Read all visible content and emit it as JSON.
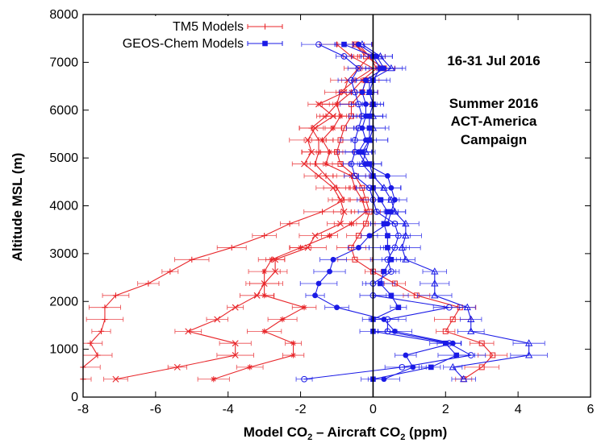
{
  "chart_data": {
    "type": "line",
    "title": "",
    "xlabel": "Model CO₂ – Aircraft CO₂ (ppm)",
    "xlabel_parts": {
      "a": "Model CO",
      "a_sub": "2",
      "b": " – Aircraft CO",
      "b_sub": "2",
      "c": " (ppm)"
    },
    "ylabel": "Altitude MSL (m)",
    "xlim": [
      -8,
      6
    ],
    "ylim": [
      0,
      8000
    ],
    "x_ticks": [
      "-8",
      "-6",
      "-4",
      "-2",
      "0",
      "2",
      "4",
      "6"
    ],
    "y_ticks": [
      "0",
      "1000",
      "2000",
      "3000",
      "4000",
      "5000",
      "6000",
      "7000",
      "8000"
    ],
    "legend_position": "top-left",
    "legend": [
      {
        "label": "TM5 Models",
        "color": "#e8262a",
        "marker": "plus"
      },
      {
        "label": "GEOS-Chem Models",
        "color": "#1a1ae6",
        "marker": "filled-square"
      }
    ],
    "annotations": {
      "date_range": "16-31 Jul 2016",
      "campaign_line1": "Summer 2016",
      "campaign_line2": "ACT-America",
      "campaign_line3": "Campaign"
    },
    "reference_line_x": 0,
    "altitudes": [
      375,
      625,
      875,
      1125,
      1375,
      1625,
      1875,
      2125,
      2375,
      2625,
      2875,
      3125,
      3375,
      3625,
      3875,
      4125,
      4375,
      4625,
      4875,
      5125,
      5375,
      5625,
      5875,
      6125,
      6375,
      6625,
      6875,
      7125,
      7375
    ],
    "series": [
      {
        "group": "TM5 Models",
        "color": "#e8262a",
        "marker": "plus",
        "values": [
          -8.4,
          -8.2,
          -7.6,
          -7.8,
          -7.5,
          -7.4,
          -7.4,
          -7.1,
          -6.2,
          -5.6,
          -5.0,
          -3.9,
          -3.0,
          -2.3,
          -1.4,
          -0.8,
          -1.0,
          -1.3,
          -1.6,
          -1.5,
          -1.5,
          -1.7,
          -1.3,
          -1.0,
          -0.9,
          -0.5,
          0.0,
          -0.6,
          -1.0
        ]
      },
      {
        "group": "TM5 Models",
        "color": "#e8262a",
        "marker": "x",
        "values": [
          -7.1,
          -5.4,
          -3.8,
          -3.8,
          -5.1,
          -4.3,
          -3.8,
          -3.2,
          -3.0,
          -2.7,
          -2.7,
          -1.8,
          -1.6,
          -0.9,
          -0.8,
          -0.9,
          -1.1,
          -1.5,
          -1.9,
          -1.7,
          -1.8,
          -1.6,
          -1.1,
          -1.5,
          -0.8,
          -0.7,
          -0.4,
          -0.1,
          -0.5
        ]
      },
      {
        "group": "TM5 Models",
        "color": "#e8262a",
        "marker": "asterisk",
        "values": [
          -4.4,
          -3.4,
          -2.2,
          -2.2,
          -3.0,
          -2.5,
          -1.9,
          -3.0,
          -3.0,
          -3.0,
          -2.8,
          -2.0,
          -1.2,
          -0.6,
          -0.2,
          -0.3,
          -0.5,
          -0.6,
          -1.3,
          -1.2,
          -1.4,
          -1.1,
          -0.9,
          -1.0,
          -0.6,
          -0.3,
          0.1,
          -0.1,
          -0.4
        ]
      },
      {
        "group": "TM5 Models",
        "color": "#e8262a",
        "marker": "open-square",
        "values": [
          2.5,
          3.0,
          3.3,
          3.0,
          2.0,
          2.2,
          2.4,
          1.2,
          0.6,
          0.0,
          -0.5,
          -0.6,
          -0.4,
          -0.2,
          -0.1,
          -0.2,
          -0.3,
          -0.5,
          -0.9,
          -1.0,
          -0.9,
          -0.8,
          -0.6,
          -0.6,
          -0.3,
          -0.2,
          0.3,
          -0.2,
          -0.5
        ]
      },
      {
        "group": "GEOS-Chem Models",
        "color": "#1a1ae6",
        "marker": "filled-square",
        "values": [
          0.0,
          1.6,
          2.3,
          2.0,
          0.0,
          0.0,
          0.7,
          0.5,
          0.2,
          0.3,
          0.5,
          0.4,
          0.4,
          0.3,
          0.4,
          0.2,
          0.0,
          0.0,
          -0.1,
          -0.3,
          -0.1,
          -0.1,
          -0.1,
          0.0,
          -0.1,
          0.0,
          0.2,
          0.0,
          -0.8
        ]
      },
      {
        "group": "GEOS-Chem Models",
        "color": "#1a1ae6",
        "marker": "filled-circle",
        "values": [
          0.3,
          1.1,
          0.9,
          2.2,
          0.6,
          0.3,
          -1.0,
          -1.6,
          -1.5,
          -1.2,
          -1.1,
          -0.4,
          -0.1,
          0.4,
          0.5,
          0.6,
          0.5,
          0.4,
          -0.2,
          -0.4,
          -0.2,
          -0.3,
          -0.2,
          -0.2,
          -0.3,
          -0.2,
          0.3,
          0.1,
          -0.4
        ]
      },
      {
        "group": "GEOS-Chem Models",
        "color": "#1a1ae6",
        "marker": "open-circle",
        "values": [
          -1.9,
          0.8,
          2.7,
          2.1,
          0.4,
          0.4,
          2.1,
          0.0,
          0.0,
          0.5,
          0.4,
          0.6,
          0.7,
          0.6,
          0.1,
          0.0,
          -0.1,
          -0.5,
          -0.6,
          -0.5,
          -0.5,
          -0.4,
          -0.3,
          -0.4,
          -0.5,
          -0.6,
          -0.4,
          -0.8,
          -1.5
        ]
      },
      {
        "group": "GEOS-Chem Models",
        "color": "#1a1ae6",
        "marker": "open-triangle",
        "values": [
          2.5,
          2.2,
          4.3,
          4.3,
          2.7,
          2.7,
          2.6,
          1.7,
          1.7,
          1.7,
          0.9,
          0.8,
          0.9,
          0.9,
          0.6,
          0.5,
          0.3,
          0.0,
          -0.3,
          -0.2,
          -0.1,
          0.0,
          0.0,
          0.0,
          -0.1,
          -0.1,
          0.5,
          0.2,
          -0.3
        ]
      }
    ]
  }
}
